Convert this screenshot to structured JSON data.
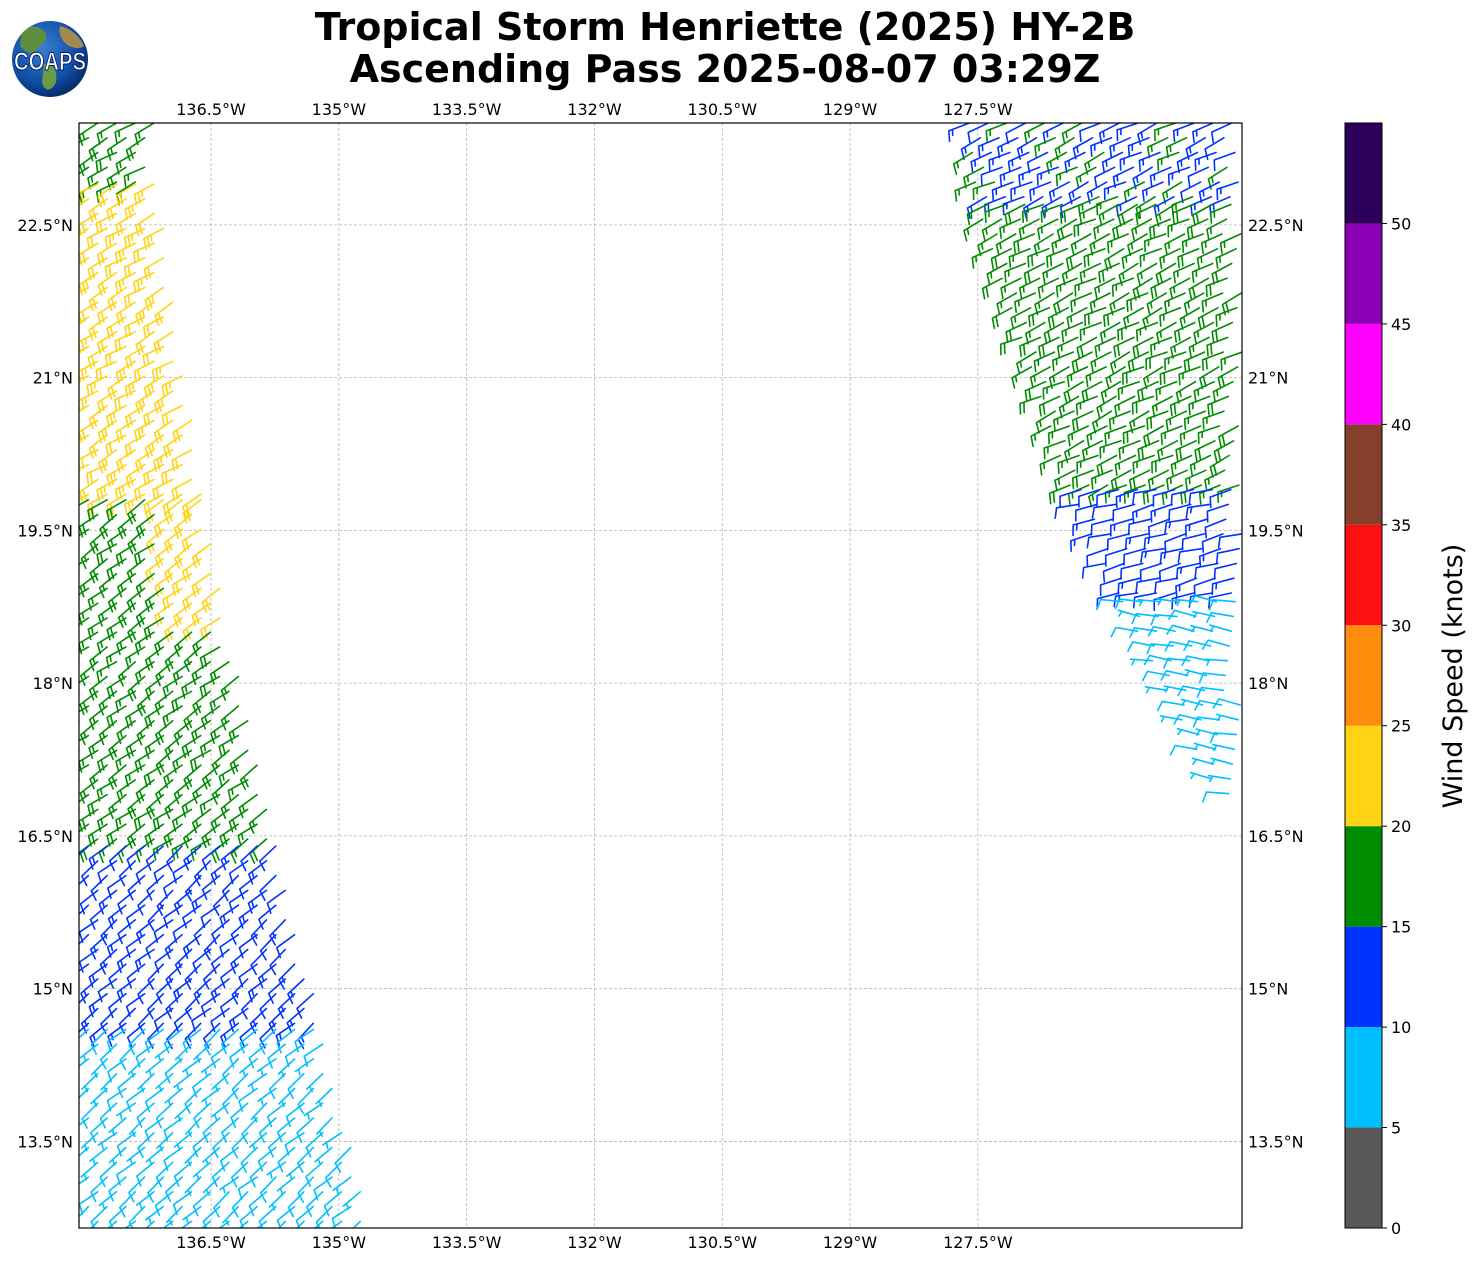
{
  "logo": {
    "text": "COAPS"
  },
  "title": {
    "line1": "Tropical Storm Henriette (2025) HY-2B",
    "line2": "Ascending Pass 2025-08-07 03:29Z"
  },
  "map": {
    "lon_range": [
      -138.05,
      -124.4
    ],
    "lat_range": [
      12.65,
      23.5
    ],
    "gridlines": true,
    "lon_ticks": [
      {
        "value": -136.5,
        "label": "136.5°W"
      },
      {
        "value": -135,
        "label": "135°W"
      },
      {
        "value": -133.5,
        "label": "133.5°W"
      },
      {
        "value": -132,
        "label": "132°W"
      },
      {
        "value": -130.5,
        "label": "130.5°W"
      },
      {
        "value": -129,
        "label": "129°W"
      },
      {
        "value": -127.5,
        "label": "127.5°W"
      }
    ],
    "lat_ticks": [
      {
        "value": 22.5,
        "label": "22.5°N"
      },
      {
        "value": 21,
        "label": "21°N"
      },
      {
        "value": 19.5,
        "label": "19.5°N"
      },
      {
        "value": 18,
        "label": "18°N"
      },
      {
        "value": 16.5,
        "label": "16.5°N"
      },
      {
        "value": 15,
        "label": "15°N"
      },
      {
        "value": 13.5,
        "label": "13.5°N"
      }
    ]
  },
  "colorbar": {
    "label": "Wind Speed (knots)",
    "levels": [
      0,
      5,
      10,
      15,
      20,
      25,
      30,
      35,
      40,
      45,
      50,
      55
    ],
    "tick_labels": [
      "0",
      "5",
      "10",
      "15",
      "20",
      "25",
      "30",
      "35",
      "40",
      "45",
      "50"
    ],
    "colors": [
      "#595959",
      "#00bfff",
      "#0033ff",
      "#008c00",
      "#ffd414",
      "#ff8c0c",
      "#ff1010",
      "#84402a",
      "#ff00ff",
      "#8a00b5",
      "#2c005a"
    ]
  },
  "chart_data": {
    "type": "wind_barbs",
    "units": "knots",
    "swaths": [
      {
        "name": "west",
        "lat_bands": [
          {
            "lat_min": 22.9,
            "lat_max": 23.5,
            "lon_min": -138.05,
            "lon_east_at_top": -137.1,
            "lon_east_at_bottom": -137.3,
            "speed_kt": 17,
            "dir_deg": 60
          },
          {
            "lat_min": 19.8,
            "lat_max": 22.9,
            "lon_min": -138.05,
            "lon_east_at_top": -137.1,
            "lon_east_at_bottom": -136.6,
            "speed_kt": 22,
            "dir_deg": 60
          },
          {
            "lat_min": 18.5,
            "lat_max": 19.8,
            "lon_min": -138.05,
            "lon_east_at_top": -136.6,
            "lon_east_at_bottom": -136.3,
            "speed_kt": 18,
            "dir_deg": 55
          },
          {
            "lat_min": 16.4,
            "lat_max": 18.5,
            "lon_min": -138.05,
            "lon_east_at_top": -136.3,
            "lon_east_at_bottom": -135.7,
            "speed_kt": 17,
            "dir_deg": 55
          },
          {
            "lat_min": 14.6,
            "lat_max": 16.4,
            "lon_min": -138.05,
            "lon_east_at_top": -135.7,
            "lon_east_at_bottom": -135.2,
            "speed_kt": 12,
            "dir_deg": 50
          },
          {
            "lat_min": 12.65,
            "lat_max": 14.6,
            "lon_min": -138.05,
            "lon_east_at_top": -135.2,
            "lon_east_at_bottom": -134.6,
            "speed_kt": 8,
            "dir_deg": 50
          }
        ],
        "edge_speed_kt": 22,
        "edge_lat_range": [
          18.6,
          20.2
        ]
      },
      {
        "name": "east",
        "lat_bands": [
          {
            "lat_min": 22.7,
            "lat_max": 23.5,
            "lon_min_at_top": -127.6,
            "lon_min_at_bottom": -127.5,
            "lon_max": -124.4,
            "speed_kt": 14,
            "dir_deg": 65
          },
          {
            "lat_min": 19.9,
            "lat_max": 22.7,
            "lon_min_at_top": -127.5,
            "lon_min_at_bottom": -126.4,
            "lon_max": -124.4,
            "speed_kt": 17,
            "dir_deg": 65
          },
          {
            "lat_min": 18.8,
            "lat_max": 19.9,
            "lon_min_at_top": -126.4,
            "lon_min_at_bottom": -125.8,
            "lon_max": -124.4,
            "speed_kt": 12,
            "dir_deg": 75
          },
          {
            "lat_min": 16.8,
            "lat_max": 18.8,
            "lon_min_at_top": -125.8,
            "lon_min_at_bottom": -124.6,
            "lon_max": -124.4,
            "speed_kt": 8,
            "dir_deg": 100
          }
        ]
      }
    ]
  }
}
